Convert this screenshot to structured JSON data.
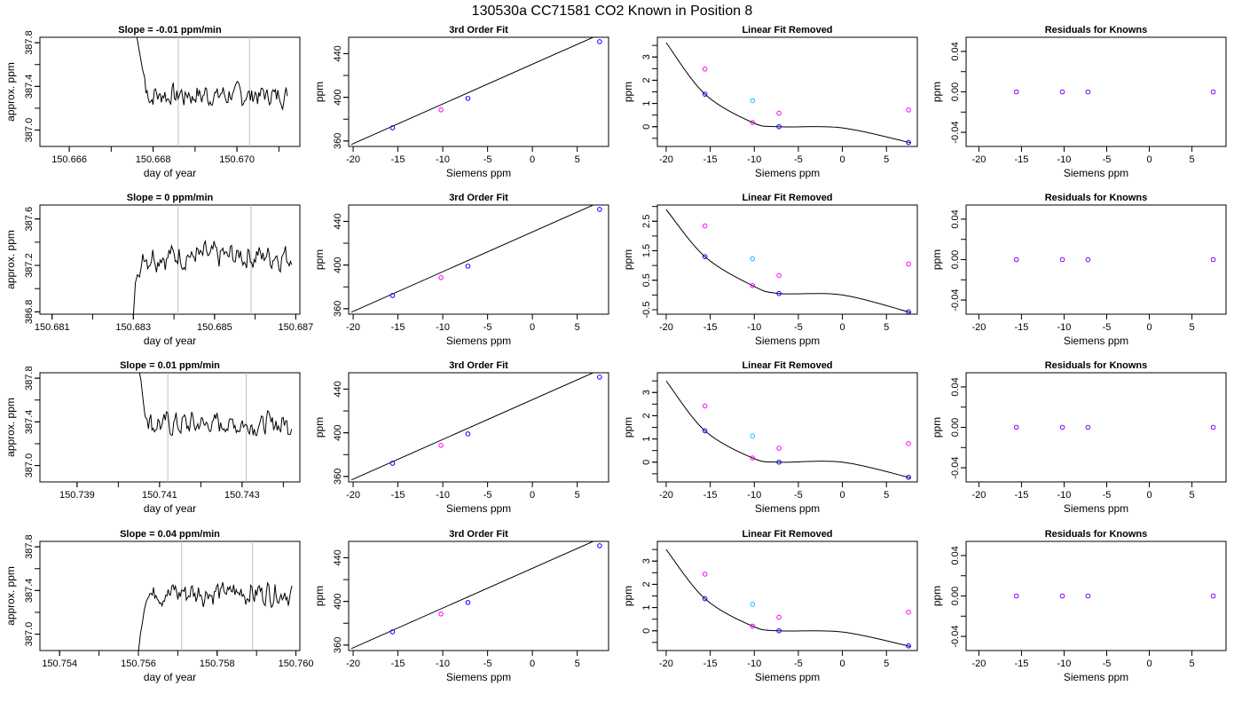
{
  "figure": {
    "title": "130530a      CC71581    CO2 Known in Position  8"
  },
  "chart_data": [
    {
      "type": "line",
      "title": "Slope =  -0.01  ppm/min",
      "xlabel": "day of year",
      "ylabel": "approx. ppm",
      "xlim": [
        150.6653,
        150.6715
      ],
      "ylim": [
        386.85,
        387.85
      ],
      "xticks": [
        "150.666",
        "150.668",
        "150.670"
      ],
      "yticks": [
        "387.0",
        "387.4",
        "387.8"
      ],
      "vlines": [
        150.6686,
        150.6703
      ],
      "x_start": 150.6676,
      "x_end": 150.6712,
      "y_entry": 387.88,
      "level": 387.32,
      "drop": [
        [
          150.6676,
          387.88
        ],
        [
          150.6677,
          387.66
        ],
        [
          150.66775,
          387.55
        ],
        [
          150.6678,
          387.48
        ]
      ],
      "trace_color": "#000000"
    },
    {
      "type": "scatter",
      "title": "3rd Order Fit",
      "xlabel": "Siemens ppm",
      "ylabel": "ppm",
      "xlim": [
        -20.5,
        8.5
      ],
      "ylim": [
        355,
        455
      ],
      "xticks": [
        "-20",
        "-15",
        "-10",
        "-5",
        "0",
        "5"
      ],
      "yticks": [
        "360",
        "400",
        "440"
      ],
      "curve": {
        "x0": -20.0,
        "y0": 357.5,
        "slope": 3.64,
        "x_from": -20.2,
        "x_to": 8.2
      },
      "points": [
        {
          "x": -15.6,
          "y": 372.1,
          "color": "#0000ff"
        },
        {
          "x": -10.2,
          "y": 388.5,
          "color": "#ff00ff"
        },
        {
          "x": -7.2,
          "y": 399.0,
          "color": "#0000ff"
        },
        {
          "x": 7.5,
          "y": 451.0,
          "color": "#0000ff"
        }
      ]
    },
    {
      "type": "scatter",
      "title": "Linear Fit Removed",
      "xlabel": "Siemens ppm",
      "ylabel": "ppm",
      "xlim": [
        -21.0,
        8.5
      ],
      "ylim": [
        -0.85,
        3.85
      ],
      "xticks": [
        "-20",
        "-15",
        "-10",
        "-5",
        "0",
        "5"
      ],
      "yticks": [
        "0",
        "1",
        "2",
        "3"
      ],
      "curve_points": [
        [
          -20.0,
          3.62
        ],
        [
          -15.6,
          1.4
        ],
        [
          -10.2,
          0.18
        ],
        [
          -7.2,
          0.0
        ],
        [
          0.0,
          -0.05
        ],
        [
          7.8,
          -0.7
        ]
      ],
      "points": [
        {
          "x": -15.6,
          "y": 2.48,
          "color": "#ff00ff"
        },
        {
          "x": -15.6,
          "y": 1.4,
          "color": "#0000ff"
        },
        {
          "x": -10.2,
          "y": 1.12,
          "color": "#00bfff"
        },
        {
          "x": -10.2,
          "y": 0.18,
          "color": "#ff00ff"
        },
        {
          "x": -7.2,
          "y": 0.58,
          "color": "#ff00ff"
        },
        {
          "x": -7.2,
          "y": 0.0,
          "color": "#0000ff"
        },
        {
          "x": 7.5,
          "y": 0.72,
          "color": "#ff00ff"
        },
        {
          "x": 7.5,
          "y": -0.68,
          "color": "#0000ff"
        }
      ]
    },
    {
      "type": "scatter",
      "title": "Residuals for Knowns",
      "xlabel": "Siemens ppm",
      "ylabel": "ppm",
      "xlim": [
        -21.5,
        9.0
      ],
      "ylim": [
        -0.054,
        0.054
      ],
      "xticks": [
        "-20",
        "-15",
        "-10",
        "-5",
        "0",
        "5"
      ],
      "yticks": [
        "-0.04",
        "0.00",
        "0.04"
      ],
      "points": [
        {
          "x": -15.6,
          "y": 0.0,
          "color": "#7f00ff"
        },
        {
          "x": -10.2,
          "y": 0.0,
          "color": "#7f00ff"
        },
        {
          "x": -7.2,
          "y": 0.0,
          "color": "#7f00ff"
        },
        {
          "x": 7.5,
          "y": 0.0,
          "color": "#7f00ff"
        }
      ]
    },
    {
      "type": "line",
      "title": "Slope =  0  ppm/min",
      "xlabel": "day of year",
      "ylabel": "approx. ppm",
      "xlim": [
        150.6807,
        150.6871
      ],
      "ylim": [
        386.78,
        387.72
      ],
      "xticks": [
        "150.681",
        "150.683",
        "150.685",
        "150.687"
      ],
      "yticks": [
        "386.8",
        "387.2",
        "387.6"
      ],
      "vlines": [
        150.6841,
        150.6859
      ],
      "x_start": 150.683,
      "x_end": 150.6869,
      "y_entry": 386.76,
      "level": 387.28,
      "drop": [
        [
          150.683,
          386.76
        ],
        [
          150.68305,
          387.05
        ],
        [
          150.6831,
          387.12
        ],
        [
          150.68315,
          387.1
        ],
        [
          150.6832,
          387.2
        ]
      ],
      "trace_color": "#000000"
    },
    {
      "type": "scatter",
      "title": "3rd Order Fit",
      "xlabel": "Siemens ppm",
      "ylabel": "ppm",
      "xlim": [
        -20.5,
        8.5
      ],
      "ylim": [
        355,
        455
      ],
      "xticks": [
        "-20",
        "-15",
        "-10",
        "-5",
        "0",
        "5"
      ],
      "yticks": [
        "360",
        "400",
        "440"
      ],
      "curve": {
        "x0": -20.0,
        "y0": 357.5,
        "slope": 3.64,
        "x_from": -20.2,
        "x_to": 8.2
      },
      "points": [
        {
          "x": -15.6,
          "y": 372.1,
          "color": "#0000ff"
        },
        {
          "x": -10.2,
          "y": 388.5,
          "color": "#ff00ff"
        },
        {
          "x": -7.2,
          "y": 399.0,
          "color": "#0000ff"
        },
        {
          "x": 7.5,
          "y": 451.0,
          "color": "#0000ff"
        }
      ]
    },
    {
      "type": "scatter",
      "title": "Linear Fit Removed",
      "xlabel": "Siemens ppm",
      "ylabel": "ppm",
      "xlim": [
        -21.0,
        8.5
      ],
      "ylim": [
        -0.65,
        3.05
      ],
      "xticks": [
        "-20",
        "-15",
        "-10",
        "-5",
        "0",
        "5"
      ],
      "yticks": [
        "-0.5",
        "0.5",
        "1.5",
        "2.5"
      ],
      "curve_points": [
        [
          -20.0,
          2.9
        ],
        [
          -15.6,
          1.3
        ],
        [
          -10.2,
          0.32
        ],
        [
          -7.2,
          0.05
        ],
        [
          0.0,
          0.0
        ],
        [
          7.8,
          -0.6
        ]
      ],
      "points": [
        {
          "x": -15.6,
          "y": 2.34,
          "color": "#ff00ff"
        },
        {
          "x": -15.6,
          "y": 1.3,
          "color": "#0000ff"
        },
        {
          "x": -10.2,
          "y": 1.23,
          "color": "#00bfff"
        },
        {
          "x": -10.2,
          "y": 0.32,
          "color": "#ff00ff"
        },
        {
          "x": -7.2,
          "y": 0.66,
          "color": "#ff00ff"
        },
        {
          "x": -7.2,
          "y": 0.05,
          "color": "#0000ff"
        },
        {
          "x": 7.5,
          "y": 1.05,
          "color": "#ff00ff"
        },
        {
          "x": 7.5,
          "y": -0.57,
          "color": "#0000ff"
        }
      ]
    },
    {
      "type": "scatter",
      "title": "Residuals for Knowns",
      "xlabel": "Siemens ppm",
      "ylabel": "ppm",
      "xlim": [
        -21.5,
        9.0
      ],
      "ylim": [
        -0.054,
        0.054
      ],
      "xticks": [
        "-20",
        "-15",
        "-10",
        "-5",
        "0",
        "5"
      ],
      "yticks": [
        "-0.04",
        "0.00",
        "0.04"
      ],
      "points": [
        {
          "x": -15.6,
          "y": 0.0,
          "color": "#7f00ff"
        },
        {
          "x": -10.2,
          "y": 0.0,
          "color": "#7f00ff"
        },
        {
          "x": -7.2,
          "y": 0.0,
          "color": "#7f00ff"
        },
        {
          "x": 7.5,
          "y": 0.0,
          "color": "#7f00ff"
        }
      ]
    },
    {
      "type": "line",
      "title": "Slope =  0.01  ppm/min",
      "xlabel": "day of year",
      "ylabel": "approx. ppm",
      "xlim": [
        150.7381,
        150.7444
      ],
      "ylim": [
        386.85,
        387.85
      ],
      "xticks": [
        "150.739",
        "150.741",
        "150.743"
      ],
      "yticks": [
        "387.0",
        "387.4",
        "387.8"
      ],
      "vlines": [
        150.7412,
        150.7431
      ],
      "x_start": 150.7405,
      "x_end": 150.7442,
      "y_entry": 387.88,
      "level": 387.38,
      "drop": [
        [
          150.7405,
          387.88
        ],
        [
          150.74055,
          387.78
        ],
        [
          150.7406,
          387.6
        ],
        [
          150.74065,
          387.45
        ],
        [
          150.7407,
          387.42
        ]
      ],
      "trace_color": "#000000"
    },
    {
      "type": "scatter",
      "title": "3rd Order Fit",
      "xlabel": "Siemens ppm",
      "ylabel": "ppm",
      "xlim": [
        -20.5,
        8.5
      ],
      "ylim": [
        355,
        455
      ],
      "xticks": [
        "-20",
        "-15",
        "-10",
        "-5",
        "0",
        "5"
      ],
      "yticks": [
        "360",
        "400",
        "440"
      ],
      "curve": {
        "x0": -20.0,
        "y0": 357.5,
        "slope": 3.64,
        "x_from": -20.2,
        "x_to": 8.2
      },
      "points": [
        {
          "x": -15.6,
          "y": 372.1,
          "color": "#0000ff"
        },
        {
          "x": -10.2,
          "y": 388.5,
          "color": "#ff00ff"
        },
        {
          "x": -7.2,
          "y": 399.0,
          "color": "#0000ff"
        },
        {
          "x": 7.5,
          "y": 451.0,
          "color": "#0000ff"
        }
      ]
    },
    {
      "type": "scatter",
      "title": "Linear Fit Removed",
      "xlabel": "Siemens ppm",
      "ylabel": "ppm",
      "xlim": [
        -21.0,
        8.5
      ],
      "ylim": [
        -0.85,
        3.85
      ],
      "xticks": [
        "-20",
        "-15",
        "-10",
        "-5",
        "0",
        "5"
      ],
      "yticks": [
        "0",
        "1",
        "2",
        "3"
      ],
      "curve_points": [
        [
          -20.0,
          3.5
        ],
        [
          -15.6,
          1.35
        ],
        [
          -10.2,
          0.18
        ],
        [
          -7.2,
          0.0
        ],
        [
          0.0,
          0.0
        ],
        [
          7.8,
          -0.68
        ]
      ],
      "points": [
        {
          "x": -15.6,
          "y": 2.42,
          "color": "#ff00ff"
        },
        {
          "x": -15.6,
          "y": 1.35,
          "color": "#0000ff"
        },
        {
          "x": -10.2,
          "y": 1.12,
          "color": "#00bfff"
        },
        {
          "x": -10.2,
          "y": 0.18,
          "color": "#ff00ff"
        },
        {
          "x": -7.2,
          "y": 0.6,
          "color": "#ff00ff"
        },
        {
          "x": -7.2,
          "y": 0.0,
          "color": "#0000ff"
        },
        {
          "x": 7.5,
          "y": 0.8,
          "color": "#ff00ff"
        },
        {
          "x": 7.5,
          "y": -0.65,
          "color": "#0000ff"
        }
      ]
    },
    {
      "type": "scatter",
      "title": "Residuals for Knowns",
      "xlabel": "Siemens ppm",
      "ylabel": "ppm",
      "xlim": [
        -21.5,
        9.0
      ],
      "ylim": [
        -0.054,
        0.054
      ],
      "xticks": [
        "-20",
        "-15",
        "-10",
        "-5",
        "0",
        "5"
      ],
      "yticks": [
        "-0.04",
        "0.00",
        "0.04"
      ],
      "points": [
        {
          "x": -15.6,
          "y": 0.0,
          "color": "#7f00ff"
        },
        {
          "x": -10.2,
          "y": 0.0,
          "color": "#7f00ff"
        },
        {
          "x": -7.2,
          "y": 0.0,
          "color": "#7f00ff"
        },
        {
          "x": 7.5,
          "y": 0.0,
          "color": "#7f00ff"
        }
      ]
    },
    {
      "type": "line",
      "title": "Slope =  0.04  ppm/min",
      "xlabel": "day of year",
      "ylabel": "approx. ppm",
      "xlim": [
        150.7535,
        150.7601
      ],
      "ylim": [
        386.85,
        387.85
      ],
      "xticks": [
        "150.754",
        "150.756",
        "150.758",
        "150.760"
      ],
      "yticks": [
        "387.0",
        "387.4",
        "387.8"
      ],
      "vlines": [
        150.7571,
        150.7589
      ],
      "x_start": 150.756,
      "x_end": 150.7599,
      "y_entry": 386.83,
      "level": 387.38,
      "drop": [
        [
          150.756,
          386.83
        ],
        [
          150.75605,
          387.0
        ],
        [
          150.7561,
          387.1
        ],
        [
          150.75615,
          387.22
        ],
        [
          150.7562,
          387.3
        ]
      ],
      "trace_color": "#000000"
    },
    {
      "type": "scatter",
      "title": "3rd Order Fit",
      "xlabel": "Siemens ppm",
      "ylabel": "ppm",
      "xlim": [
        -20.5,
        8.5
      ],
      "ylim": [
        355,
        455
      ],
      "xticks": [
        "-20",
        "-15",
        "-10",
        "-5",
        "0",
        "5"
      ],
      "yticks": [
        "360",
        "400",
        "440"
      ],
      "curve": {
        "x0": -20.0,
        "y0": 357.5,
        "slope": 3.64,
        "x_from": -20.2,
        "x_to": 8.2
      },
      "points": [
        {
          "x": -15.6,
          "y": 372.1,
          "color": "#0000ff"
        },
        {
          "x": -10.2,
          "y": 388.5,
          "color": "#ff00ff"
        },
        {
          "x": -7.2,
          "y": 399.0,
          "color": "#0000ff"
        },
        {
          "x": 7.5,
          "y": 451.0,
          "color": "#0000ff"
        }
      ]
    },
    {
      "type": "scatter",
      "title": "Linear Fit Removed",
      "xlabel": "Siemens ppm",
      "ylabel": "ppm",
      "xlim": [
        -21.0,
        8.5
      ],
      "ylim": [
        -0.85,
        3.85
      ],
      "xticks": [
        "-20",
        "-15",
        "-10",
        "-5",
        "0",
        "5"
      ],
      "yticks": [
        "0",
        "1",
        "2",
        "3"
      ],
      "curve_points": [
        [
          -20.0,
          3.5
        ],
        [
          -15.6,
          1.38
        ],
        [
          -10.2,
          0.2
        ],
        [
          -7.2,
          0.0
        ],
        [
          0.0,
          -0.05
        ],
        [
          7.8,
          -0.68
        ]
      ],
      "points": [
        {
          "x": -15.6,
          "y": 2.44,
          "color": "#ff00ff"
        },
        {
          "x": -15.6,
          "y": 1.38,
          "color": "#0000ff"
        },
        {
          "x": -10.2,
          "y": 1.14,
          "color": "#00bfff"
        },
        {
          "x": -10.2,
          "y": 0.2,
          "color": "#ff00ff"
        },
        {
          "x": -7.2,
          "y": 0.58,
          "color": "#ff00ff"
        },
        {
          "x": -7.2,
          "y": 0.0,
          "color": "#0000ff"
        },
        {
          "x": 7.5,
          "y": 0.8,
          "color": "#ff00ff"
        },
        {
          "x": 7.5,
          "y": -0.65,
          "color": "#0000ff"
        }
      ]
    },
    {
      "type": "scatter",
      "title": "Residuals for Knowns",
      "xlabel": "Siemens ppm",
      "ylabel": "ppm",
      "xlim": [
        -21.5,
        9.0
      ],
      "ylim": [
        -0.054,
        0.054
      ],
      "xticks": [
        "-20",
        "-15",
        "-10",
        "-5",
        "0",
        "5"
      ],
      "yticks": [
        "-0.04",
        "0.00",
        "0.04"
      ],
      "points": [
        {
          "x": -15.6,
          "y": 0.0,
          "color": "#7f00ff"
        },
        {
          "x": -10.2,
          "y": 0.0,
          "color": "#7f00ff"
        },
        {
          "x": -7.2,
          "y": 0.0,
          "color": "#7f00ff"
        },
        {
          "x": 7.5,
          "y": 0.0,
          "color": "#7f00ff"
        }
      ]
    }
  ]
}
